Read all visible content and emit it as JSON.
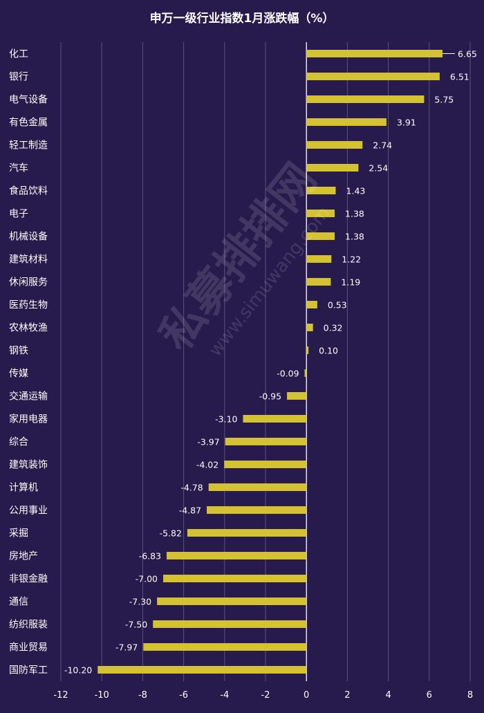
{
  "chart_data": {
    "type": "bar",
    "orientation": "horizontal",
    "title": "申万一级行业指数1月涨跌幅（%）",
    "categories": [
      "化工",
      "银行",
      "电气设备",
      "有色金属",
      "轻工制造",
      "汽车",
      "食品饮料",
      "电子",
      "机械设备",
      "建筑材料",
      "休闲服务",
      "医药生物",
      "农林牧渔",
      "钢铁",
      "传媒",
      "交通运输",
      "家用电器",
      "综合",
      "建筑装饰",
      "计算机",
      "公用事业",
      "采掘",
      "房地产",
      "非银金融",
      "通信",
      "纺织服装",
      "商业贸易",
      "国防军工"
    ],
    "values": [
      6.65,
      6.51,
      5.75,
      3.91,
      2.74,
      2.54,
      1.43,
      1.38,
      1.38,
      1.22,
      1.19,
      0.53,
      0.32,
      0.1,
      -0.09,
      -0.95,
      -3.1,
      -3.97,
      -4.02,
      -4.78,
      -4.87,
      -5.82,
      -6.83,
      -7.0,
      -7.3,
      -7.5,
      -7.97,
      -10.2
    ],
    "value_labels": [
      "6.65",
      "6.51",
      "5.75",
      "3.91",
      "2.74",
      "2.54",
      "1.43",
      "1.38",
      "1.38",
      "1.22",
      "1.19",
      "0.53",
      "0.32",
      "0.10",
      "-0.09",
      "-0.95",
      "-3.10",
      "-3.97",
      "-4.02",
      "-4.78",
      "-4.87",
      "-5.82",
      "-6.83",
      "-7.00",
      "-7.30",
      "-7.50",
      "-7.97",
      "-10.20"
    ],
    "xlim": [
      -12,
      8
    ],
    "xticks": [
      -12,
      -10,
      -8,
      -6,
      -4,
      -2,
      0,
      2,
      4,
      6,
      8
    ],
    "xlabel": "",
    "ylabel": "",
    "grid": true,
    "legend": "none",
    "colors": {
      "bar": "#d4c232",
      "background": "#271a4c",
      "grid": "#5d5280",
      "text": "#ffffff"
    }
  },
  "watermark": {
    "text_cn": "私募排排网",
    "text_en": "www.simuwang.com"
  }
}
